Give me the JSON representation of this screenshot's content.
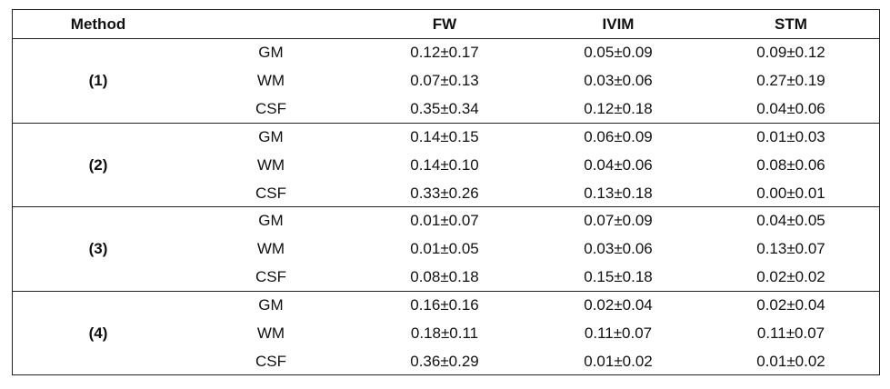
{
  "header": {
    "method": "Method",
    "columns": [
      "FW",
      "IVIM",
      "STM"
    ]
  },
  "groups": [
    {
      "label": "(1)",
      "rows": [
        {
          "tissue": "GM",
          "values": [
            "0.12±0.17",
            "0.05±0.09",
            "0.09±0.12"
          ]
        },
        {
          "tissue": "WM",
          "values": [
            "0.07±0.13",
            "0.03±0.06",
            "0.27±0.19"
          ]
        },
        {
          "tissue": "CSF",
          "values": [
            "0.35±0.34",
            "0.12±0.18",
            "0.04±0.06"
          ]
        }
      ]
    },
    {
      "label": "(2)",
      "rows": [
        {
          "tissue": "GM",
          "values": [
            "0.14±0.15",
            "0.06±0.09",
            "0.01±0.03"
          ]
        },
        {
          "tissue": "WM",
          "values": [
            "0.14±0.10",
            "0.04±0.06",
            "0.08±0.06"
          ]
        },
        {
          "tissue": "CSF",
          "values": [
            "0.33±0.26",
            "0.13±0.18",
            "0.00±0.01"
          ]
        }
      ]
    },
    {
      "label": "(3)",
      "rows": [
        {
          "tissue": "GM",
          "values": [
            "0.01±0.07",
            "0.07±0.09",
            "0.04±0.05"
          ]
        },
        {
          "tissue": "WM",
          "values": [
            "0.01±0.05",
            "0.03±0.06",
            "0.13±0.07"
          ]
        },
        {
          "tissue": "CSF",
          "values": [
            "0.08±0.18",
            "0.15±0.18",
            "0.02±0.02"
          ]
        }
      ]
    },
    {
      "label": "(4)",
      "rows": [
        {
          "tissue": "GM",
          "values": [
            "0.16±0.16",
            "0.02±0.04",
            "0.02±0.04"
          ]
        },
        {
          "tissue": "WM",
          "values": [
            "0.18±0.11",
            "0.11±0.07",
            "0.11±0.07"
          ]
        },
        {
          "tissue": "CSF",
          "values": [
            "0.36±0.29",
            "0.01±0.02",
            "0.01±0.02"
          ]
        }
      ]
    }
  ]
}
